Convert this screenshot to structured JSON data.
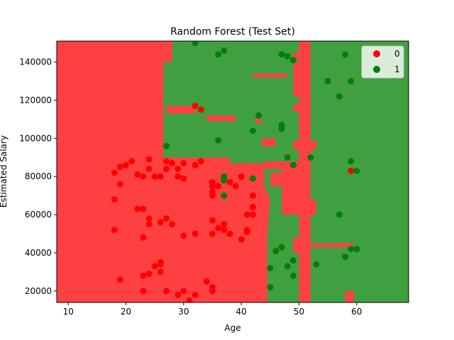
{
  "chart_data": {
    "type": "scatter",
    "title": "Random Forest (Test Set)",
    "xlabel": "Age",
    "ylabel": "Estimated Salary",
    "xlim": [
      8,
      69
    ],
    "ylim": [
      14000,
      151000
    ],
    "xticks": [
      10,
      20,
      30,
      40,
      50,
      60
    ],
    "yticks": [
      20000,
      40000,
      60000,
      80000,
      100000,
      120000,
      140000
    ],
    "ytick_labels": [
      "20000",
      "40000",
      "60000",
      "80000",
      "100000",
      "120000",
      "140000"
    ],
    "legend_position": "top-right",
    "grid": false,
    "background_regions": {
      "class_0_color": "#ff4040",
      "class_1_color": "#40a040",
      "class_0_polygon": [
        [
          8,
          151000
        ],
        [
          26.5,
          151000
        ],
        [
          26.5,
          90000
        ],
        [
          38,
          90000
        ],
        [
          38,
          87000
        ],
        [
          44,
          87000
        ],
        [
          44,
          75000
        ],
        [
          45,
          68000
        ],
        [
          44.5,
          50000
        ],
        [
          44.5,
          14000
        ],
        [
          8,
          14000
        ]
      ],
      "class_0_patches": [
        {
          "x": [
            27,
            32
          ],
          "y": [
            113000,
            117000
          ]
        },
        {
          "x": [
            34,
            39
          ],
          "y": [
            109000,
            112000
          ]
        },
        {
          "x": [
            42.5,
            43.5
          ],
          "y": [
            108000,
            111000
          ]
        },
        {
          "x": [
            43.5,
            46
          ],
          "y": [
            96000,
            100000
          ]
        },
        {
          "x": [
            44,
            52
          ],
          "y": [
            84000,
            88000
          ]
        },
        {
          "x": [
            45,
            47
          ],
          "y": [
            75000,
            82000
          ]
        },
        {
          "x": [
            47,
            51
          ],
          "y": [
            60000,
            86000
          ]
        },
        {
          "x": [
            49,
            53
          ],
          "y": [
            60000,
            68000
          ]
        },
        {
          "x": [
            49,
            51
          ],
          "y": [
            40000,
            48000
          ]
        },
        {
          "x": [
            52,
            59.5
          ],
          "y": [
            43000,
            45000
          ]
        },
        {
          "x": [
            50,
            52
          ],
          "y": [
            14000,
            151000
          ]
        },
        {
          "x": [
            49,
            53
          ],
          "y": [
            94000,
            99000
          ]
        },
        {
          "x": [
            49,
            52
          ],
          "y": [
            114000,
            118000
          ]
        },
        {
          "x": [
            42,
            48
          ],
          "y": [
            132000,
            134000
          ]
        },
        {
          "x": [
            49,
            51
          ],
          "y": [
            141000,
            145000
          ]
        },
        {
          "x": [
            49,
            52
          ],
          "y": [
            122000,
            140000
          ]
        },
        {
          "x": [
            58,
            59.5
          ],
          "y": [
            14000,
            20000
          ]
        },
        {
          "x": [
            26,
            28
          ],
          "y": [
            140000,
            151000
          ]
        }
      ]
    },
    "series": [
      {
        "name": "0",
        "color": "#ff0000",
        "x": [
          18,
          19,
          20,
          21,
          22,
          23,
          24,
          24,
          25,
          26,
          27,
          27,
          28,
          29,
          29,
          30,
          30,
          32,
          33,
          35,
          35,
          35,
          35,
          36,
          37,
          37,
          38,
          39,
          40,
          41,
          42,
          42,
          42,
          18,
          19,
          22,
          23,
          24,
          24,
          26,
          27,
          28,
          30,
          32,
          35,
          35,
          36,
          37,
          37,
          38,
          40,
          41,
          41,
          18,
          19,
          23,
          23,
          24,
          25,
          26,
          26,
          27,
          29,
          30,
          31,
          32,
          34,
          35,
          35,
          47,
          59,
          32,
          33,
          23,
          26
        ],
        "y": [
          82000,
          85000,
          86000,
          88000,
          81000,
          80000,
          84000,
          89000,
          80000,
          80000,
          84000,
          88000,
          87000,
          80000,
          84000,
          79000,
          87000,
          86000,
          88000,
          77000,
          75000,
          72000,
          70000,
          75000,
          80000,
          79000,
          77000,
          75000,
          80000,
          60000,
          70000,
          64000,
          60000,
          68000,
          76000,
          63000,
          63000,
          58000,
          55000,
          56000,
          58000,
          55000,
          49000,
          50000,
          50000,
          57000,
          53000,
          55000,
          52000,
          50000,
          47000,
          52000,
          51000,
          52000,
          26000,
          48000,
          28000,
          29000,
          33000,
          35000,
          30000,
          20000,
          18000,
          20000,
          15000,
          18000,
          25000,
          22000,
          20000,
          43000,
          83000,
          117000,
          115000,
          20000,
          34000
        ]
      },
      {
        "name": "1",
        "color": "#008000",
        "x": [
          32,
          36,
          37,
          47,
          48,
          49,
          58,
          55,
          59,
          57,
          42,
          43,
          47,
          47,
          27,
          36,
          48,
          52,
          49,
          59,
          60,
          37,
          42,
          37,
          37,
          46,
          47,
          57,
          58,
          59,
          60,
          45,
          46,
          48,
          49,
          49,
          53,
          45
        ],
        "y": [
          150000,
          144000,
          146000,
          144000,
          143000,
          141000,
          144000,
          130000,
          130000,
          122000,
          104000,
          112000,
          105000,
          107000,
          96000,
          99000,
          90000,
          90000,
          86000,
          88000,
          83000,
          80000,
          79000,
          78000,
          70000,
          41000,
          43000,
          60000,
          38000,
          42000,
          42000,
          32000,
          41000,
          33000,
          36000,
          28000,
          34000,
          22000
        ]
      }
    ]
  }
}
